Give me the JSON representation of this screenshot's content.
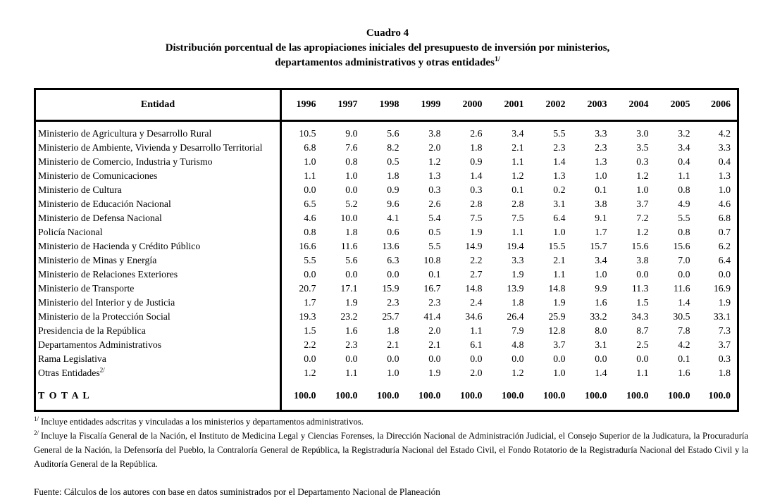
{
  "title": "Cuadro 4",
  "subtitle_line1": "Distribución porcentual de las apropiaciones iniciales del presupuesto de inversión por ministerios,",
  "subtitle_line2": "departamentos administrativos y otras entidades",
  "subtitle_footnote_marker": "1/",
  "table": {
    "entity_header": "Entidad",
    "years": [
      "1996",
      "1997",
      "1998",
      "1999",
      "2000",
      "2001",
      "2002",
      "2003",
      "2004",
      "2005",
      "2006"
    ],
    "rows": [
      {
        "name": "Ministerio de Agricultura y Desarrollo Rural",
        "values": [
          "10.5",
          "9.0",
          "5.6",
          "3.8",
          "2.6",
          "3.4",
          "5.5",
          "3.3",
          "3.0",
          "3.2",
          "4.2"
        ]
      },
      {
        "name": "Ministerio de Ambiente, Vivienda y Desarrollo Territorial",
        "values": [
          "6.8",
          "7.6",
          "8.2",
          "2.0",
          "1.8",
          "2.1",
          "2.3",
          "2.3",
          "3.5",
          "3.4",
          "3.3"
        ]
      },
      {
        "name": "Ministerio de Comercio, Industria y Turismo",
        "values": [
          "1.0",
          "0.8",
          "0.5",
          "1.2",
          "0.9",
          "1.1",
          "1.4",
          "1.3",
          "0.3",
          "0.4",
          "0.4"
        ]
      },
      {
        "name": "Ministerio de Comunicaciones",
        "values": [
          "1.1",
          "1.0",
          "1.8",
          "1.3",
          "1.4",
          "1.2",
          "1.3",
          "1.0",
          "1.2",
          "1.1",
          "1.3"
        ]
      },
      {
        "name": "Ministerio de Cultura",
        "values": [
          "0.0",
          "0.0",
          "0.9",
          "0.3",
          "0.3",
          "0.1",
          "0.2",
          "0.1",
          "1.0",
          "0.8",
          "1.0"
        ]
      },
      {
        "name": "Ministerio de Educación Nacional",
        "values": [
          "6.5",
          "5.2",
          "9.6",
          "2.6",
          "2.8",
          "2.8",
          "3.1",
          "3.8",
          "3.7",
          "4.9",
          "4.6"
        ]
      },
      {
        "name": "Ministerio de Defensa Nacional",
        "values": [
          "4.6",
          "10.0",
          "4.1",
          "5.4",
          "7.5",
          "7.5",
          "6.4",
          "9.1",
          "7.2",
          "5.5",
          "6.8"
        ]
      },
      {
        "name": "Policía Nacional",
        "values": [
          "0.8",
          "1.8",
          "0.6",
          "0.5",
          "1.9",
          "1.1",
          "1.0",
          "1.7",
          "1.2",
          "0.8",
          "0.7"
        ]
      },
      {
        "name": "Ministerio de Hacienda y Crédito Público",
        "values": [
          "16.6",
          "11.6",
          "13.6",
          "5.5",
          "14.9",
          "19.4",
          "15.5",
          "15.7",
          "15.6",
          "15.6",
          "6.2"
        ]
      },
      {
        "name": "Ministerio de Minas y Energía",
        "values": [
          "5.5",
          "5.6",
          "6.3",
          "10.8",
          "2.2",
          "3.3",
          "2.1",
          "3.4",
          "3.8",
          "7.0",
          "6.4"
        ]
      },
      {
        "name": "Ministerio de Relaciones Exteriores",
        "values": [
          "0.0",
          "0.0",
          "0.0",
          "0.1",
          "2.7",
          "1.9",
          "1.1",
          "1.0",
          "0.0",
          "0.0",
          "0.0"
        ]
      },
      {
        "name": "Ministerio de Transporte",
        "values": [
          "20.7",
          "17.1",
          "15.9",
          "16.7",
          "14.8",
          "13.9",
          "14.8",
          "9.9",
          "11.3",
          "11.6",
          "16.9"
        ]
      },
      {
        "name": "Ministerio del Interior y de Justicia",
        "values": [
          "1.7",
          "1.9",
          "2.3",
          "2.3",
          "2.4",
          "1.8",
          "1.9",
          "1.6",
          "1.5",
          "1.4",
          "1.9"
        ]
      },
      {
        "name": "Ministerio de la Protección Social",
        "values": [
          "19.3",
          "23.2",
          "25.7",
          "41.4",
          "34.6",
          "26.4",
          "25.9",
          "33.2",
          "34.3",
          "30.5",
          "33.1"
        ]
      },
      {
        "name": "Presidencia de la República",
        "values": [
          "1.5",
          "1.6",
          "1.8",
          "2.0",
          "1.1",
          "7.9",
          "12.8",
          "8.0",
          "8.7",
          "7.8",
          "7.3"
        ]
      },
      {
        "name": "Departamentos Administrativos",
        "values": [
          "2.2",
          "2.3",
          "2.1",
          "2.1",
          "6.1",
          "4.8",
          "3.7",
          "3.1",
          "2.5",
          "4.2",
          "3.7"
        ]
      },
      {
        "name": "Rama Legislativa",
        "values": [
          "0.0",
          "0.0",
          "0.0",
          "0.0",
          "0.0",
          "0.0",
          "0.0",
          "0.0",
          "0.0",
          "0.1",
          "0.3"
        ]
      },
      {
        "name": "Otras Entidades",
        "sup": "2/",
        "values": [
          "1.2",
          "1.1",
          "1.0",
          "1.9",
          "2.0",
          "1.2",
          "1.0",
          "1.4",
          "1.1",
          "1.6",
          "1.8"
        ]
      }
    ],
    "total": {
      "label": "T O T A L",
      "values": [
        "100.0",
        "100.0",
        "100.0",
        "100.0",
        "100.0",
        "100.0",
        "100.0",
        "100.0",
        "100.0",
        "100.0",
        "100.0"
      ]
    }
  },
  "footnotes": [
    {
      "marker": "1/",
      "text": "Incluye entidades adscritas y vinculadas a los ministerios y departamentos administrativos."
    },
    {
      "marker": "2/",
      "text": "Incluye la Fiscalía General de la Nación, el Instituto de Medicina Legal y Ciencias Forenses, la Dirección Nacional de Administración Judicial, el Consejo Superior de la Judicatura, la Procuraduría General de la Nación, la Defensoría del Pueblo, la Contraloría General de República, la Registraduría Nacional del Estado Civil, el Fondo Rotatorio de la Registraduría Nacional del Estado Civil y la Auditoría General de la República."
    }
  ],
  "source": "Fuente: Cálculos de los autores con base en datos suministrados por el Departamento Nacional de Planeación"
}
